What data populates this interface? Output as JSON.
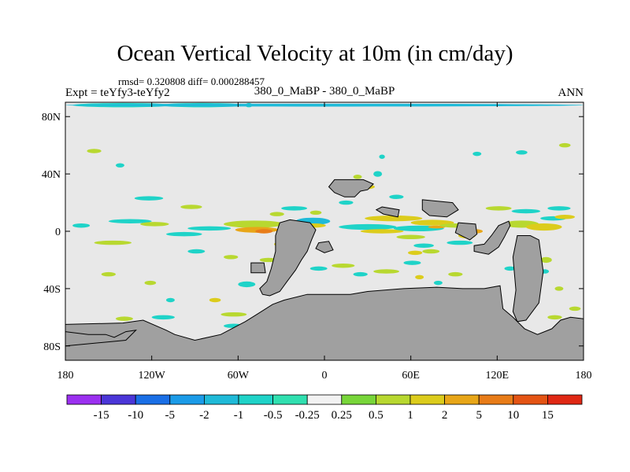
{
  "header": {
    "title": "Ocean Vertical Velocity at 10m (in cm/day)",
    "stats": "rmsd= 0.320808 diff= 0.000288457",
    "experiment": "Expt = teYfy3-teYfy2",
    "case": "380_0_MaBP - 380_0_MaBP",
    "season": "ANN"
  },
  "chart_data": {
    "type": "heatmap",
    "projection": "cylindrical-equidistant",
    "title": "Ocean Vertical Velocity at 10m (in cm/day)",
    "units": "cm/day",
    "x_range": [
      -180,
      180
    ],
    "y_range": [
      -90,
      90
    ],
    "x_ticks": [
      {
        "value": -180,
        "label": "180"
      },
      {
        "value": -120,
        "label": "120W"
      },
      {
        "value": -60,
        "label": "60W"
      },
      {
        "value": 0,
        "label": "0"
      },
      {
        "value": 60,
        "label": "60E"
      },
      {
        "value": 120,
        "label": "120E"
      },
      {
        "value": 180,
        "label": "180"
      }
    ],
    "y_ticks": [
      {
        "value": 80,
        "label": "80N"
      },
      {
        "value": 40,
        "label": "40N"
      },
      {
        "value": 0,
        "label": "0"
      },
      {
        "value": -40,
        "label": "40S"
      },
      {
        "value": -80,
        "label": "80S"
      }
    ],
    "background_color": "#e8e8e8",
    "land_color": "#a0a0a0",
    "colorbar": {
      "levels": [
        "-15",
        "-10",
        "-5",
        "-2",
        "-1",
        "-0.5",
        "-0.25",
        "0.25",
        "0.5",
        "1",
        "2",
        "5",
        "10",
        "15"
      ],
      "colors": [
        "#9b30f0",
        "#4b36d8",
        "#1a6fe6",
        "#1b9be8",
        "#1fbad8",
        "#1fd3c8",
        "#30e0b0",
        "#f2f2f2",
        "#78d63a",
        "#b8d830",
        "#dccc1c",
        "#e8a618",
        "#e87c18",
        "#e45414",
        "#e02814"
      ]
    },
    "land_polygons": [
      {
        "name": "north-america-africa-bridge",
        "points": [
          [
            7,
            36
          ],
          [
            17,
            36
          ],
          [
            27,
            36
          ],
          [
            34,
            33
          ],
          [
            30,
            29
          ],
          [
            25,
            28
          ],
          [
            21,
            24
          ],
          [
            14,
            24
          ],
          [
            7,
            27
          ],
          [
            3,
            31
          ]
        ]
      },
      {
        "name": "south-america",
        "points": [
          [
            -24,
            8
          ],
          [
            -10,
            6
          ],
          [
            -6,
            1
          ],
          [
            -9,
            -6
          ],
          [
            -12,
            -14
          ],
          [
            -16,
            -20
          ],
          [
            -20,
            -27
          ],
          [
            -26,
            -35
          ],
          [
            -31,
            -42
          ],
          [
            -38,
            -45
          ],
          [
            -43,
            -44
          ],
          [
            -45,
            -40
          ],
          [
            -40,
            -35
          ],
          [
            -37,
            -26
          ],
          [
            -34,
            -14
          ],
          [
            -34,
            -3
          ],
          [
            -31,
            6
          ]
        ]
      },
      {
        "name": "arabia",
        "points": [
          [
            40,
            17
          ],
          [
            52,
            15
          ],
          [
            51,
            10
          ],
          [
            41,
            12
          ],
          [
            36,
            15
          ]
        ]
      },
      {
        "name": "india-block",
        "points": [
          [
            68,
            22
          ],
          [
            89,
            20
          ],
          [
            93,
            15
          ],
          [
            85,
            10
          ],
          [
            73,
            11
          ],
          [
            68,
            15
          ]
        ]
      },
      {
        "name": "southeast-asia",
        "points": [
          [
            93,
            6
          ],
          [
            105,
            5
          ],
          [
            106,
            -2
          ],
          [
            101,
            -6
          ],
          [
            91,
            -1
          ]
        ]
      },
      {
        "name": "australia-arc",
        "points": [
          [
            104,
            -14
          ],
          [
            114,
            -16
          ],
          [
            121,
            -11
          ],
          [
            125,
            -4
          ],
          [
            129,
            4
          ],
          [
            128,
            7
          ],
          [
            121,
            4
          ],
          [
            116,
            -3
          ],
          [
            111,
            -9
          ],
          [
            104,
            -10
          ]
        ]
      },
      {
        "name": "pacific-block",
        "points": [
          [
            134,
            -3
          ],
          [
            143,
            -3
          ],
          [
            149,
            -6
          ],
          [
            152,
            -28
          ],
          [
            149,
            -50
          ],
          [
            140,
            -62
          ],
          [
            134,
            -63
          ],
          [
            131,
            -56
          ],
          [
            133,
            -41
          ],
          [
            131,
            -18
          ]
        ]
      },
      {
        "name": "small-island-west",
        "points": [
          [
            -51,
            -22
          ],
          [
            -42,
            -22
          ],
          [
            -41,
            -29
          ],
          [
            -51,
            -29
          ]
        ]
      },
      {
        "name": "small-island-mid",
        "points": [
          [
            -4,
            -8
          ],
          [
            3,
            -7
          ],
          [
            6,
            -13
          ],
          [
            0,
            -15
          ],
          [
            -6,
            -12
          ]
        ]
      },
      {
        "name": "antarctica",
        "points": [
          [
            -180,
            -65
          ],
          [
            -140,
            -64
          ],
          [
            -126,
            -62
          ],
          [
            -110,
            -69
          ],
          [
            -104,
            -72
          ],
          [
            -90,
            -76
          ],
          [
            -72,
            -72
          ],
          [
            -55,
            -63
          ],
          [
            -47,
            -58
          ],
          [
            -36,
            -51
          ],
          [
            -28,
            -48
          ],
          [
            -12,
            -44
          ],
          [
            4,
            -44
          ],
          [
            18,
            -44
          ],
          [
            30,
            -42
          ],
          [
            55,
            -40
          ],
          [
            78,
            -39
          ],
          [
            96,
            -40
          ],
          [
            111,
            -40
          ],
          [
            122,
            -38
          ],
          [
            124,
            -54
          ],
          [
            131,
            -60
          ],
          [
            139,
            -68
          ],
          [
            148,
            -72
          ],
          [
            158,
            -68
          ],
          [
            164,
            -62
          ],
          [
            171,
            -60
          ],
          [
            180,
            -61
          ],
          [
            180,
            -90
          ],
          [
            -180,
            -90
          ]
        ]
      },
      {
        "name": "antarctica-peninsula-west",
        "points": [
          [
            -180,
            -70
          ],
          [
            -164,
            -72
          ],
          [
            -152,
            -72
          ],
          [
            -146,
            -74
          ],
          [
            -138,
            -70
          ],
          [
            -131,
            -69
          ],
          [
            -138,
            -76
          ],
          [
            -180,
            -80
          ]
        ]
      }
    ],
    "anomaly_patches": [
      {
        "lon": -175,
        "lat": 88,
        "w": 70,
        "h": 3,
        "level": "-0.5"
      },
      {
        "lon": -115,
        "lat": 88,
        "w": 60,
        "h": 3,
        "level": "-0.5"
      },
      {
        "lon": -55,
        "lat": 88,
        "w": 5,
        "h": 3,
        "level": "-0.5"
      },
      {
        "lon": -180,
        "lat": 88,
        "w": 360,
        "h": 2,
        "level": "-1"
      },
      {
        "lon": -20,
        "lat": 7,
        "w": 24,
        "h": 5,
        "level": "-1"
      },
      {
        "lon": -17,
        "lat": 4,
        "w": 18,
        "h": 3,
        "level": "1"
      },
      {
        "lon": -70,
        "lat": 5,
        "w": 42,
        "h": 5,
        "level": "0.5"
      },
      {
        "lon": -62,
        "lat": 1,
        "w": 30,
        "h": 4,
        "level": "2"
      },
      {
        "lon": -48,
        "lat": 0,
        "w": 12,
        "h": 3,
        "level": "5"
      },
      {
        "lon": -95,
        "lat": 2,
        "w": 30,
        "h": 3,
        "level": "-0.5"
      },
      {
        "lon": -30,
        "lat": -2,
        "w": 15,
        "h": 2,
        "level": "1"
      },
      {
        "lon": 10,
        "lat": 3,
        "w": 40,
        "h": 4,
        "level": "-0.5"
      },
      {
        "lon": 25,
        "lat": 0,
        "w": 30,
        "h": 3,
        "level": "1"
      },
      {
        "lon": 48,
        "lat": 2,
        "w": 35,
        "h": 4,
        "level": "-0.5"
      },
      {
        "lon": 60,
        "lat": 6,
        "w": 30,
        "h": 4,
        "level": "1"
      },
      {
        "lon": 72,
        "lat": 3,
        "w": 12,
        "h": 2,
        "level": "2"
      },
      {
        "lon": 28,
        "lat": 9,
        "w": 40,
        "h": 4,
        "level": "1"
      },
      {
        "lon": 80,
        "lat": 4,
        "w": 25,
        "h": 3,
        "level": "0.5"
      },
      {
        "lon": 93,
        "lat": -3,
        "w": 12,
        "h": 4,
        "level": "1"
      },
      {
        "lon": 100,
        "lat": 0,
        "w": 10,
        "h": 3,
        "level": "2"
      },
      {
        "lon": 125,
        "lat": 5,
        "w": 24,
        "h": 5,
        "level": "0.5"
      },
      {
        "lon": 140,
        "lat": 3,
        "w": 25,
        "h": 5,
        "level": "1"
      },
      {
        "lon": 150,
        "lat": 9,
        "w": 18,
        "h": 3,
        "level": "-0.5"
      },
      {
        "lon": 160,
        "lat": 10,
        "w": 14,
        "h": 3,
        "level": "1"
      },
      {
        "lon": 85,
        "lat": -8,
        "w": 18,
        "h": 3,
        "level": "-0.5"
      },
      {
        "lon": 50,
        "lat": -4,
        "w": 20,
        "h": 3,
        "level": "0.5"
      },
      {
        "lon": 62,
        "lat": -10,
        "w": 14,
        "h": 3,
        "level": "-0.5"
      },
      {
        "lon": 68,
        "lat": -14,
        "w": 12,
        "h": 3,
        "level": "0.5"
      },
      {
        "lon": 135,
        "lat": -14,
        "w": 12,
        "h": 4,
        "level": "1"
      },
      {
        "lon": 150,
        "lat": -20,
        "w": 8,
        "h": 4,
        "level": "0.5"
      },
      {
        "lon": 112,
        "lat": 16,
        "w": 18,
        "h": 3,
        "level": "0.5"
      },
      {
        "lon": 130,
        "lat": 14,
        "w": 20,
        "h": 3,
        "level": "-0.5"
      },
      {
        "lon": 155,
        "lat": 16,
        "w": 16,
        "h": 3,
        "level": "-0.5"
      },
      {
        "lon": -150,
        "lat": 7,
        "w": 30,
        "h": 3,
        "level": "-0.5"
      },
      {
        "lon": -128,
        "lat": 5,
        "w": 20,
        "h": 3,
        "level": "0.5"
      },
      {
        "lon": -110,
        "lat": -2,
        "w": 25,
        "h": 3,
        "level": "-0.5"
      },
      {
        "lon": -160,
        "lat": -8,
        "w": 26,
        "h": 3,
        "level": "0.5"
      },
      {
        "lon": -175,
        "lat": 4,
        "w": 12,
        "h": 3,
        "level": "-0.5"
      },
      {
        "lon": -132,
        "lat": 23,
        "w": 20,
        "h": 3,
        "level": "-0.5"
      },
      {
        "lon": -100,
        "lat": 17,
        "w": 15,
        "h": 3,
        "level": "0.5"
      },
      {
        "lon": -30,
        "lat": 16,
        "w": 18,
        "h": 3,
        "level": "-0.5"
      },
      {
        "lon": -10,
        "lat": 13,
        "w": 8,
        "h": 3,
        "level": "0.5"
      },
      {
        "lon": 10,
        "lat": 20,
        "w": 10,
        "h": 3,
        "level": "-0.5"
      },
      {
        "lon": 45,
        "lat": 24,
        "w": 10,
        "h": 3,
        "level": "-0.5"
      },
      {
        "lon": 34,
        "lat": 40,
        "w": 6,
        "h": 4,
        "level": "-0.5"
      },
      {
        "lon": 20,
        "lat": 38,
        "w": 6,
        "h": 3,
        "level": "0.5"
      },
      {
        "lon": 25,
        "lat": 31,
        "w": 10,
        "h": 3,
        "level": "1"
      },
      {
        "lon": 38,
        "lat": 52,
        "w": 4,
        "h": 3,
        "level": "-0.5"
      },
      {
        "lon": -165,
        "lat": 56,
        "w": 10,
        "h": 3,
        "level": "0.5"
      },
      {
        "lon": 133,
        "lat": 55,
        "w": 8,
        "h": 3,
        "level": "-0.5"
      },
      {
        "lon": 163,
        "lat": 60,
        "w": 8,
        "h": 3,
        "level": "0.5"
      },
      {
        "lon": 103,
        "lat": 54,
        "w": 6,
        "h": 3,
        "level": "-0.5"
      },
      {
        "lon": -145,
        "lat": 46,
        "w": 6,
        "h": 3,
        "level": "-0.5"
      },
      {
        "lon": -35,
        "lat": -9,
        "w": 8,
        "h": 3,
        "level": "1"
      },
      {
        "lon": -45,
        "lat": -20,
        "w": 12,
        "h": 3,
        "level": "0.5"
      },
      {
        "lon": -38,
        "lat": -28,
        "w": 8,
        "h": 3,
        "level": "1"
      },
      {
        "lon": -10,
        "lat": -26,
        "w": 12,
        "h": 3,
        "level": "-0.5"
      },
      {
        "lon": 5,
        "lat": -24,
        "w": 16,
        "h": 3,
        "level": "0.5"
      },
      {
        "lon": 20,
        "lat": -30,
        "w": 10,
        "h": 3,
        "level": "-0.5"
      },
      {
        "lon": 34,
        "lat": -28,
        "w": 18,
        "h": 3,
        "level": "0.5"
      },
      {
        "lon": 55,
        "lat": -22,
        "w": 12,
        "h": 3,
        "level": "-0.5"
      },
      {
        "lon": 63,
        "lat": -32,
        "w": 6,
        "h": 3,
        "level": "1"
      },
      {
        "lon": 76,
        "lat": -36,
        "w": 6,
        "h": 3,
        "level": "-0.5"
      },
      {
        "lon": 86,
        "lat": -30,
        "w": 10,
        "h": 3,
        "level": "0.5"
      },
      {
        "lon": 125,
        "lat": -26,
        "w": 8,
        "h": 3,
        "level": "-0.5"
      },
      {
        "lon": -125,
        "lat": -36,
        "w": 8,
        "h": 3,
        "level": "0.5"
      },
      {
        "lon": -110,
        "lat": -48,
        "w": 6,
        "h": 3,
        "level": "-0.5"
      },
      {
        "lon": -155,
        "lat": -30,
        "w": 10,
        "h": 3,
        "level": "0.5"
      },
      {
        "lon": -95,
        "lat": -14,
        "w": 12,
        "h": 3,
        "level": "-0.5"
      },
      {
        "lon": -70,
        "lat": -18,
        "w": 10,
        "h": 3,
        "level": "0.5"
      },
      {
        "lon": -60,
        "lat": -37,
        "w": 12,
        "h": 4,
        "level": "-0.5"
      },
      {
        "lon": -72,
        "lat": -58,
        "w": 18,
        "h": 3,
        "level": "0.5"
      },
      {
        "lon": -120,
        "lat": -60,
        "w": 16,
        "h": 3,
        "level": "-0.5"
      },
      {
        "lon": -145,
        "lat": -61,
        "w": 12,
        "h": 3,
        "level": "0.5"
      },
      {
        "lon": -80,
        "lat": -48,
        "w": 8,
        "h": 3,
        "level": "1"
      },
      {
        "lon": 155,
        "lat": -60,
        "w": 10,
        "h": 3,
        "level": "0.5"
      },
      {
        "lon": 160,
        "lat": -66,
        "w": 12,
        "h": 4,
        "level": "-0.5"
      },
      {
        "lon": 170,
        "lat": -54,
        "w": 8,
        "h": 3,
        "level": "0.5"
      },
      {
        "lon": 168,
        "lat": -72,
        "w": 12,
        "h": 3,
        "level": "-0.5"
      },
      {
        "lon": -175,
        "lat": -77,
        "w": 14,
        "h": 3,
        "level": "0.5"
      },
      {
        "lon": -160,
        "lat": -80,
        "w": 30,
        "h": 3,
        "level": "0.5"
      },
      {
        "lon": -15,
        "lat": -47,
        "w": 20,
        "h": 3,
        "level": "0.5"
      },
      {
        "lon": -70,
        "lat": -66,
        "w": 14,
        "h": 3,
        "level": "-0.5"
      },
      {
        "lon": 160,
        "lat": -40,
        "w": 6,
        "h": 3,
        "level": "0.5"
      },
      {
        "lon": 150,
        "lat": -28,
        "w": 6,
        "h": 3,
        "level": "-0.5"
      },
      {
        "lon": 58,
        "lat": -15,
        "w": 10,
        "h": 3,
        "level": "1"
      },
      {
        "lon": -38,
        "lat": 12,
        "w": 10,
        "h": 3,
        "level": "0.5"
      }
    ]
  }
}
